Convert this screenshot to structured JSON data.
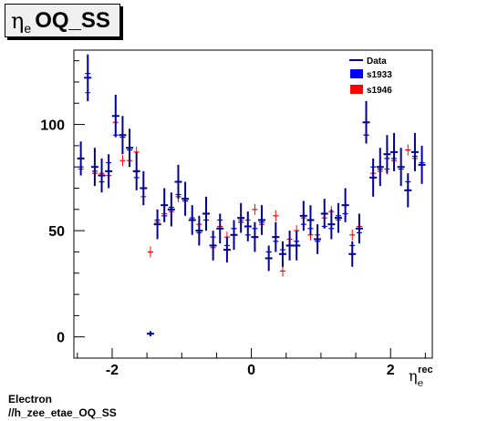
{
  "title": {
    "symbol": "η",
    "subscript": "e",
    "text": "OQ_SS"
  },
  "footer": {
    "line1": "Electron",
    "line2": "//h_zee_etae_OQ_SS"
  },
  "xaxis": {
    "symbol": "η",
    "subscript": "e",
    "superscript": "rec"
  },
  "colors": {
    "data": "#000099",
    "s1933": "#0000ff",
    "s1946": "#ff0000",
    "axis": "#000000"
  },
  "chart_data": {
    "type": "scatter",
    "xlim": [
      -2.55,
      2.6
    ],
    "ylim": [
      -10,
      135
    ],
    "xticks": [
      -2,
      0,
      2
    ],
    "xtick_labels": [
      "-2",
      "0",
      "2"
    ],
    "yticks": [
      0,
      50,
      100
    ],
    "ytick_labels": [
      "0",
      "50",
      "100"
    ],
    "legend": {
      "placement": "top-right",
      "entries": [
        "Data",
        "s1933",
        "s1946"
      ]
    },
    "x": [
      -2.45,
      -2.35,
      -2.25,
      -2.15,
      -2.05,
      -1.95,
      -1.85,
      -1.75,
      -1.65,
      -1.55,
      -1.45,
      -1.35,
      -1.25,
      -1.15,
      -1.05,
      -0.95,
      -0.85,
      -0.75,
      -0.65,
      -0.55,
      -0.45,
      -0.35,
      -0.25,
      -0.15,
      -0.05,
      0.05,
      0.15,
      0.25,
      0.35,
      0.45,
      0.55,
      0.65,
      0.75,
      0.85,
      0.95,
      1.05,
      1.15,
      1.25,
      1.35,
      1.45,
      1.55,
      1.65,
      1.75,
      1.85,
      1.95,
      2.05,
      2.15,
      2.25,
      2.35,
      2.45
    ],
    "series": [
      {
        "name": "Data",
        "values": [
          84,
          122,
          80,
          76,
          78,
          104,
          95,
          89,
          78,
          70,
          1.5,
          53,
          62,
          60,
          73,
          65,
          55,
          50,
          58,
          43,
          51,
          41,
          48,
          56,
          52,
          47,
          55,
          37,
          47,
          39,
          43,
          43,
          57,
          55,
          46,
          58,
          53,
          56,
          62,
          39,
          51,
          101,
          75,
          80,
          86,
          87,
          80,
          69,
          87,
          81
        ],
        "errors": [
          8,
          11,
          9,
          8,
          8,
          10,
          9,
          9,
          9,
          8,
          1.2,
          7,
          8,
          8,
          8,
          8,
          7,
          7,
          8,
          7,
          7,
          6,
          7,
          7,
          7,
          7,
          7,
          6,
          7,
          6,
          7,
          7,
          7,
          7,
          7,
          7,
          7,
          7,
          8,
          6,
          7,
          10,
          9,
          9,
          9,
          9,
          9,
          8,
          9,
          9
        ]
      },
      {
        "name": "s1933",
        "values": [
          80,
          124,
          78,
          73,
          82,
          95,
          94,
          88,
          75,
          70,
          1.5,
          55,
          57,
          61,
          67,
          64,
          56,
          49,
          55,
          47,
          55,
          43,
          51,
          54,
          48,
          51,
          54,
          40,
          45,
          41,
          43,
          45,
          53,
          51,
          45,
          52,
          51,
          57,
          58,
          43,
          49,
          95,
          80,
          79,
          84,
          84,
          79,
          73,
          85,
          82
        ]
      },
      {
        "name": "s1946",
        "values": [
          79,
          115,
          77,
          77,
          76,
          101,
          83,
          83,
          87,
          66,
          40,
          54,
          58,
          59,
          66,
          64,
          55,
          53,
          58,
          42,
          52,
          47,
          51,
          55,
          55,
          60,
          53,
          40,
          57,
          31,
          46,
          50,
          56,
          48,
          48,
          56,
          59,
          55,
          62,
          48,
          52,
          95,
          77,
          78,
          79,
          83,
          80,
          88,
          84,
          81
        ]
      }
    ]
  }
}
